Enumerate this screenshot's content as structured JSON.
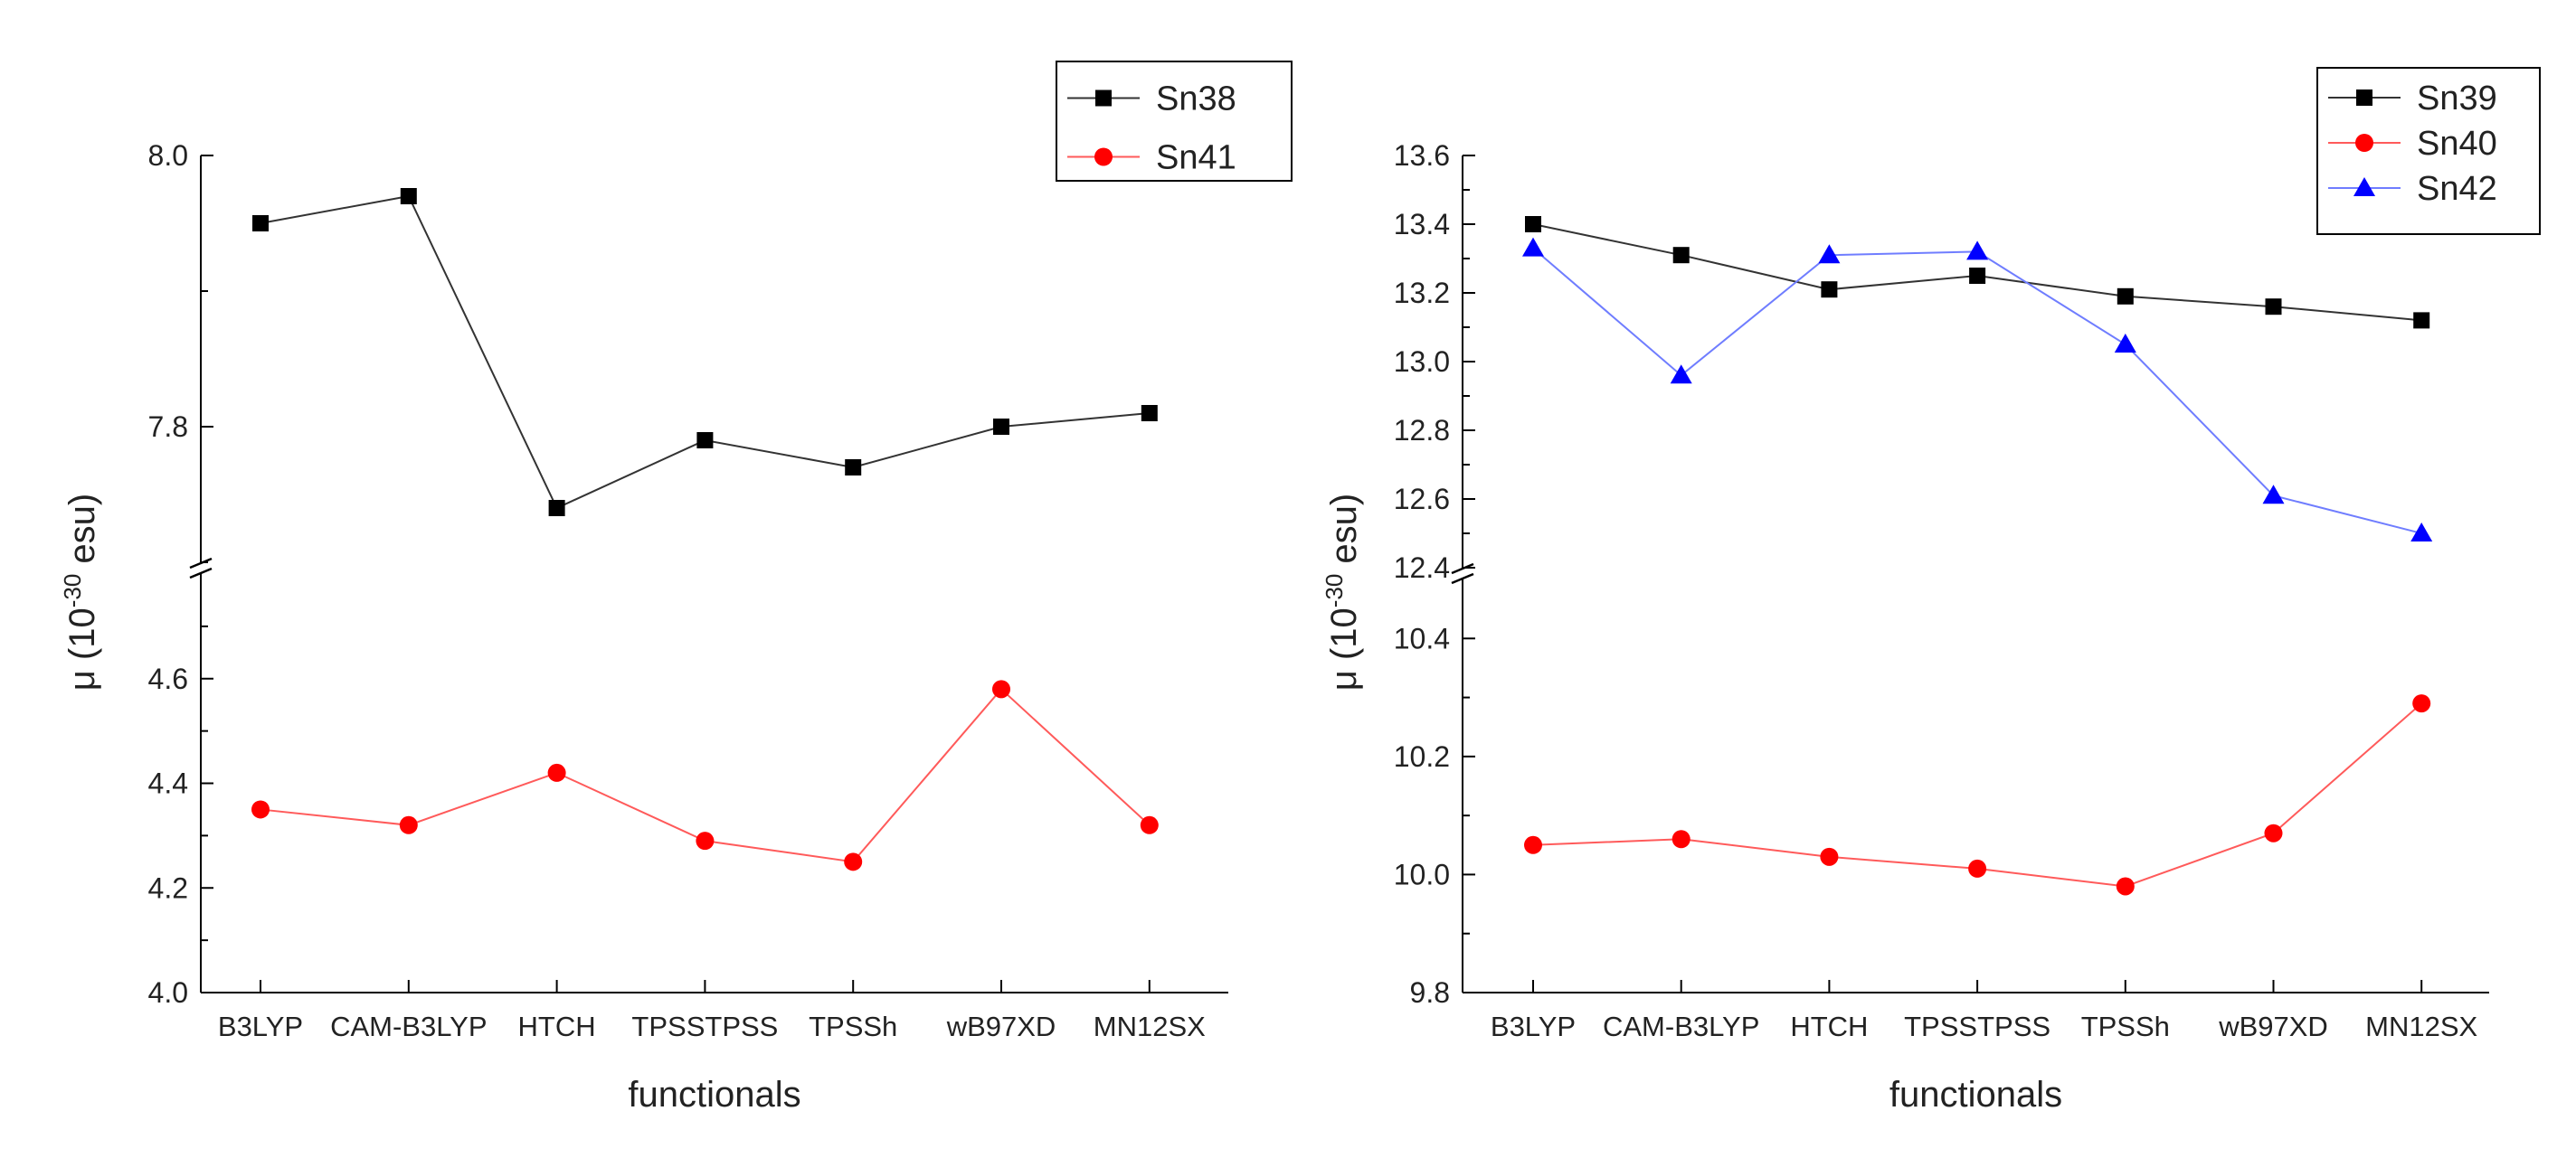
{
  "chart_data": [
    {
      "type": "line",
      "title": "",
      "xlabel": "functionals",
      "ylabel_prefix": "μ (10",
      "ylabel_exponent": "-30",
      "ylabel_suffix": " esu)",
      "categories": [
        "B3LYP",
        "CAM-B3LYP",
        "HTCH",
        "TPSSTPSS",
        "TPSSh",
        "wB97XD",
        "MN12SX"
      ],
      "axis_break": true,
      "upper_segment": {
        "ylim": [
          7.7,
          8.0
        ],
        "ticks": [
          7.8,
          8.0
        ],
        "tick_labels": [
          "7.8",
          "8.0"
        ],
        "minor_ticks": [
          7.7,
          7.9
        ]
      },
      "lower_segment": {
        "ylim": [
          4.0,
          4.8
        ],
        "ticks": [
          4.0,
          4.2,
          4.4,
          4.6
        ],
        "tick_labels": [
          "4.0",
          "4.2",
          "4.4",
          "4.6"
        ],
        "minor_ticks": [
          4.1,
          4.3,
          4.5,
          4.7
        ]
      },
      "series": [
        {
          "name": "Sn38",
          "segment": "upper",
          "marker": "square",
          "color": "#000000",
          "line_color": "#333333",
          "values": [
            7.95,
            7.97,
            7.74,
            7.79,
            7.77,
            7.8,
            7.81
          ]
        },
        {
          "name": "Sn41",
          "segment": "lower",
          "marker": "circle",
          "color": "#ff0000",
          "line_color": "#ff5a5a",
          "values": [
            4.35,
            4.32,
            4.42,
            4.29,
            4.25,
            4.58,
            4.32
          ]
        }
      ],
      "legend": {
        "position": "top-right",
        "entries": [
          "Sn38",
          "Sn41"
        ]
      }
    },
    {
      "type": "line",
      "title": "",
      "xlabel": "functionals",
      "ylabel_prefix": "μ (10",
      "ylabel_exponent": "-30",
      "ylabel_suffix": " esu)",
      "categories": [
        "B3LYP",
        "CAM-B3LYP",
        "HTCH",
        "TPSSTPSS",
        "TPSSh",
        "wB97XD",
        "MN12SX"
      ],
      "axis_break": true,
      "upper_segment": {
        "ylim": [
          12.4,
          13.6
        ],
        "ticks": [
          12.4,
          12.6,
          12.8,
          13.0,
          13.2,
          13.4,
          13.6
        ],
        "tick_labels": [
          "12.4",
          "12.6",
          "12.8",
          "13.0",
          "13.2",
          "13.4",
          "13.6"
        ],
        "minor_ticks": [
          12.5,
          12.7,
          12.9,
          13.1,
          13.3,
          13.5
        ]
      },
      "lower_segment": {
        "ylim": [
          9.8,
          10.5
        ],
        "ticks": [
          9.8,
          10.0,
          10.2,
          10.4
        ],
        "tick_labels": [
          "9.8",
          "10.0",
          "10.2",
          "10.4"
        ],
        "minor_ticks": [
          9.9,
          10.1,
          10.3
        ]
      },
      "series": [
        {
          "name": "Sn39",
          "segment": "upper",
          "marker": "square",
          "color": "#000000",
          "line_color": "#333333",
          "values": [
            13.4,
            13.31,
            13.21,
            13.25,
            13.19,
            13.16,
            13.12
          ]
        },
        {
          "name": "Sn40",
          "segment": "lower",
          "marker": "circle",
          "color": "#ff0000",
          "line_color": "#ff5a5a",
          "values": [
            10.05,
            10.06,
            10.03,
            10.01,
            9.98,
            10.07,
            10.29
          ]
        },
        {
          "name": "Sn42",
          "segment": "upper",
          "marker": "triangle",
          "color": "#0000ff",
          "line_color": "#6f7dff",
          "values": [
            13.33,
            12.96,
            13.31,
            13.32,
            13.05,
            12.61,
            12.5
          ]
        }
      ],
      "legend": {
        "position": "top-right",
        "entries": [
          "Sn39",
          "Sn40",
          "Sn42"
        ]
      }
    }
  ]
}
